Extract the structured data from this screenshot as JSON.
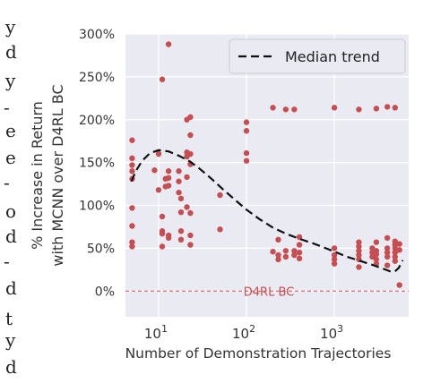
{
  "page": {
    "cropped_margin_glyphs": [
      "y",
      "d",
      "y",
      "-",
      "e",
      "e",
      "-",
      "o",
      "d",
      "-",
      "d",
      "t",
      "y",
      "d"
    ]
  },
  "chart_data": {
    "type": "scatter",
    "title": "",
    "xlabel": "Number of Demonstration Trajectories",
    "ylabel_lines": [
      "% Increase in Return",
      "with MCNN over D4RL BC"
    ],
    "x_scale": "log",
    "xlim": [
      4.2,
      7000
    ],
    "ylim": [
      -30,
      300
    ],
    "x_ticks": [
      {
        "value": 10,
        "base": "10",
        "exp": "1"
      },
      {
        "value": 100,
        "base": "10",
        "exp": "2"
      },
      {
        "value": 1000,
        "base": "10",
        "exp": "3"
      }
    ],
    "y_ticks": [
      {
        "value": 0,
        "label": "0%"
      },
      {
        "value": 50,
        "label": "50%"
      },
      {
        "value": 100,
        "label": "100%"
      },
      {
        "value": 150,
        "label": "150%"
      },
      {
        "value": 200,
        "label": "200%"
      },
      {
        "value": 250,
        "label": "250%"
      },
      {
        "value": 300,
        "label": "300%"
      }
    ],
    "grid": true,
    "background": "#eaeaf2",
    "point_color": "#c44e52",
    "legend": {
      "placement": "top-right",
      "entries": [
        {
          "label": "Median trend",
          "style": "dashed"
        }
      ]
    },
    "baseline": {
      "y": 0,
      "label": "D4RL BC",
      "color": "#c44e52"
    },
    "points": [
      [
        5,
        176
      ],
      [
        5,
        155
      ],
      [
        5,
        147
      ],
      [
        5,
        140
      ],
      [
        5,
        131
      ],
      [
        5,
        97
      ],
      [
        5,
        76
      ],
      [
        5,
        57
      ],
      [
        5,
        52
      ],
      [
        9,
        141
      ],
      [
        10,
        160
      ],
      [
        10,
        118
      ],
      [
        11,
        247
      ],
      [
        11,
        87
      ],
      [
        11,
        70
      ],
      [
        11,
        67
      ],
      [
        11,
        52
      ],
      [
        12,
        131
      ],
      [
        12,
        122
      ],
      [
        13,
        288
      ],
      [
        13,
        140
      ],
      [
        13,
        132
      ],
      [
        13,
        123
      ],
      [
        13,
        65
      ],
      [
        13,
        62
      ],
      [
        17,
        140
      ],
      [
        17,
        128
      ],
      [
        17,
        115
      ],
      [
        18,
        108
      ],
      [
        18,
        92
      ],
      [
        18,
        70
      ],
      [
        18,
        60
      ],
      [
        21,
        200
      ],
      [
        21,
        162
      ],
      [
        21,
        157
      ],
      [
        21,
        133
      ],
      [
        21,
        98
      ],
      [
        23,
        203
      ],
      [
        23,
        182
      ],
      [
        23,
        160
      ],
      [
        23,
        148
      ],
      [
        23,
        91
      ],
      [
        23,
        65
      ],
      [
        23,
        54
      ],
      [
        50,
        112
      ],
      [
        50,
        72
      ],
      [
        100,
        197
      ],
      [
        100,
        187
      ],
      [
        100,
        161
      ],
      [
        100,
        152
      ],
      [
        200,
        214
      ],
      [
        200,
        46
      ],
      [
        230,
        60
      ],
      [
        230,
        42
      ],
      [
        230,
        37
      ],
      [
        280,
        212
      ],
      [
        280,
        47
      ],
      [
        280,
        40
      ],
      [
        350,
        212
      ],
      [
        350,
        47
      ],
      [
        350,
        42
      ],
      [
        400,
        63
      ],
      [
        400,
        54
      ],
      [
        400,
        45
      ],
      [
        400,
        38
      ],
      [
        1000,
        214
      ],
      [
        1000,
        50
      ],
      [
        1000,
        42
      ],
      [
        1000,
        37
      ],
      [
        1000,
        32
      ],
      [
        1900,
        212
      ],
      [
        1900,
        57
      ],
      [
        1900,
        52
      ],
      [
        1900,
        47
      ],
      [
        1900,
        42
      ],
      [
        1900,
        37
      ],
      [
        1900,
        28
      ],
      [
        2700,
        50
      ],
      [
        2700,
        45
      ],
      [
        2700,
        40
      ],
      [
        3000,
        213
      ],
      [
        3000,
        57
      ],
      [
        3000,
        47
      ],
      [
        3000,
        43
      ],
      [
        3000,
        37
      ],
      [
        3000,
        32
      ],
      [
        4000,
        215
      ],
      [
        4000,
        62
      ],
      [
        4000,
        50
      ],
      [
        4000,
        45
      ],
      [
        4000,
        40
      ],
      [
        4000,
        30
      ],
      [
        4900,
        214
      ],
      [
        4900,
        58
      ],
      [
        4900,
        54
      ],
      [
        4900,
        50
      ],
      [
        4900,
        45
      ],
      [
        4900,
        40
      ],
      [
        4900,
        35
      ],
      [
        5500,
        55
      ],
      [
        5500,
        48
      ],
      [
        5500,
        7
      ]
    ],
    "median_trend": [
      [
        4.9,
        128
      ],
      [
        5.5,
        140
      ],
      [
        6.5,
        152
      ],
      [
        8,
        161
      ],
      [
        10,
        164.5
      ],
      [
        13,
        163
      ],
      [
        17,
        158
      ],
      [
        23,
        151
      ],
      [
        30,
        142
      ],
      [
        40,
        131
      ],
      [
        55,
        118
      ],
      [
        75,
        106
      ],
      [
        100,
        95
      ],
      [
        140,
        84
      ],
      [
        200,
        74
      ],
      [
        280,
        67
      ],
      [
        400,
        61
      ],
      [
        560,
        56
      ],
      [
        800,
        50
      ],
      [
        1000,
        46
      ],
      [
        1400,
        40
      ],
      [
        2000,
        35
      ],
      [
        2800,
        30
      ],
      [
        3600,
        26
      ],
      [
        4300,
        23
      ],
      [
        4900,
        23
      ],
      [
        5400,
        27
      ],
      [
        5800,
        33
      ],
      [
        6000,
        36
      ]
    ]
  }
}
